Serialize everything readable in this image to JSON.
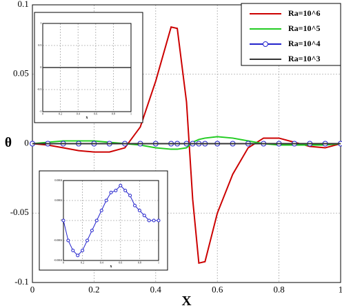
{
  "chart_data": [
    {
      "type": "line",
      "xlabel": "X",
      "ylabel": "θ",
      "x": [
        0,
        0.05,
        0.1,
        0.15,
        0.2,
        0.25,
        0.3,
        0.35,
        0.4,
        0.45,
        0.47,
        0.5,
        0.52,
        0.54,
        0.56,
        0.6,
        0.65,
        0.7,
        0.75,
        0.8,
        0.85,
        0.9,
        0.95,
        1
      ],
      "xlim": [
        0,
        1
      ],
      "xticks": [
        0,
        0.2,
        0.4,
        0.6,
        0.8,
        1
      ],
      "ylim": [
        -0.1,
        0.1
      ],
      "yticks": [
        -0.1,
        -0.05,
        0,
        0.05,
        0.1
      ],
      "grid": true,
      "legend": "upper right",
      "series": [
        {
          "name": "Ra=10^6",
          "color": "#cc0000",
          "values": [
            0,
            -0.001,
            -0.003,
            -0.005,
            -0.006,
            -0.006,
            -0.003,
            0.012,
            0.045,
            0.084,
            0.083,
            0.03,
            -0.04,
            -0.086,
            -0.085,
            -0.05,
            -0.022,
            -0.003,
            0.004,
            0.004,
            0.001,
            -0.002,
            -0.003,
            0
          ]
        },
        {
          "name": "Ra=10^5",
          "color": "#22cc22",
          "values": [
            0,
            0.001,
            0.002,
            0.002,
            0.002,
            0.001,
            0,
            -0.001,
            -0.003,
            -0.004,
            -0.004,
            -0.003,
            0.001,
            0.003,
            0.004,
            0.005,
            0.004,
            0.002,
            0,
            -0.001,
            -0.001,
            -0.001,
            -0.001,
            0
          ]
        },
        {
          "name": "Ra=10^4",
          "color": "#2222cc",
          "marker": "circle",
          "values": [
            0,
            0,
            0,
            0,
            0,
            0,
            0,
            0,
            0,
            0,
            0,
            0,
            0,
            0,
            0,
            0,
            0,
            0,
            0,
            0,
            0,
            0,
            0,
            0
          ]
        },
        {
          "name": "Ra=10^3",
          "color": "#333333",
          "values": [
            0,
            0,
            0,
            0,
            0,
            0,
            0,
            0,
            0,
            0,
            0,
            0,
            0,
            0,
            0,
            0,
            0,
            0,
            0,
            0,
            0,
            0,
            0,
            0
          ]
        }
      ]
    },
    {
      "type": "line",
      "xlabel": "x",
      "x": [
        0,
        1
      ],
      "xlim": [
        0,
        1
      ],
      "xticks": [
        0,
        0.2,
        0.4,
        0.6,
        0.8,
        1
      ],
      "ylim": [
        -1,
        1
      ],
      "yticks": [
        -1,
        -0.5,
        0,
        0.5,
        1
      ],
      "grid": true,
      "series": [
        {
          "color": "#333333",
          "values": [
            0,
            0
          ]
        }
      ]
    },
    {
      "type": "line",
      "xlabel": "x",
      "x": [
        0,
        0.05,
        0.1,
        0.15,
        0.2,
        0.25,
        0.3,
        0.35,
        0.4,
        0.45,
        0.5,
        0.55,
        0.6,
        0.65,
        0.7,
        0.75,
        0.8,
        0.85,
        0.9,
        0.95,
        1
      ],
      "xlim": [
        0,
        1
      ],
      "xticks": [
        0,
        0.2,
        0.4,
        0.6,
        0.8,
        1
      ],
      "ylim": [
        -0.0004,
        0.0004
      ],
      "yticks": [
        -0.0004,
        -0.0002,
        0,
        0.0002,
        0.0004
      ],
      "grid": true,
      "series": [
        {
          "color": "#2222cc",
          "marker": "circle",
          "values": [
            0,
            -0.0002,
            -0.0003,
            -0.00035,
            -0.0003,
            -0.0002,
            -0.0001,
            0,
            0.0001,
            0.0002,
            0.00028,
            0.0003,
            0.00035,
            0.0003,
            0.00025,
            0.00015,
            0.0001,
            5e-05,
            0,
            0,
            0
          ]
        }
      ]
    }
  ]
}
